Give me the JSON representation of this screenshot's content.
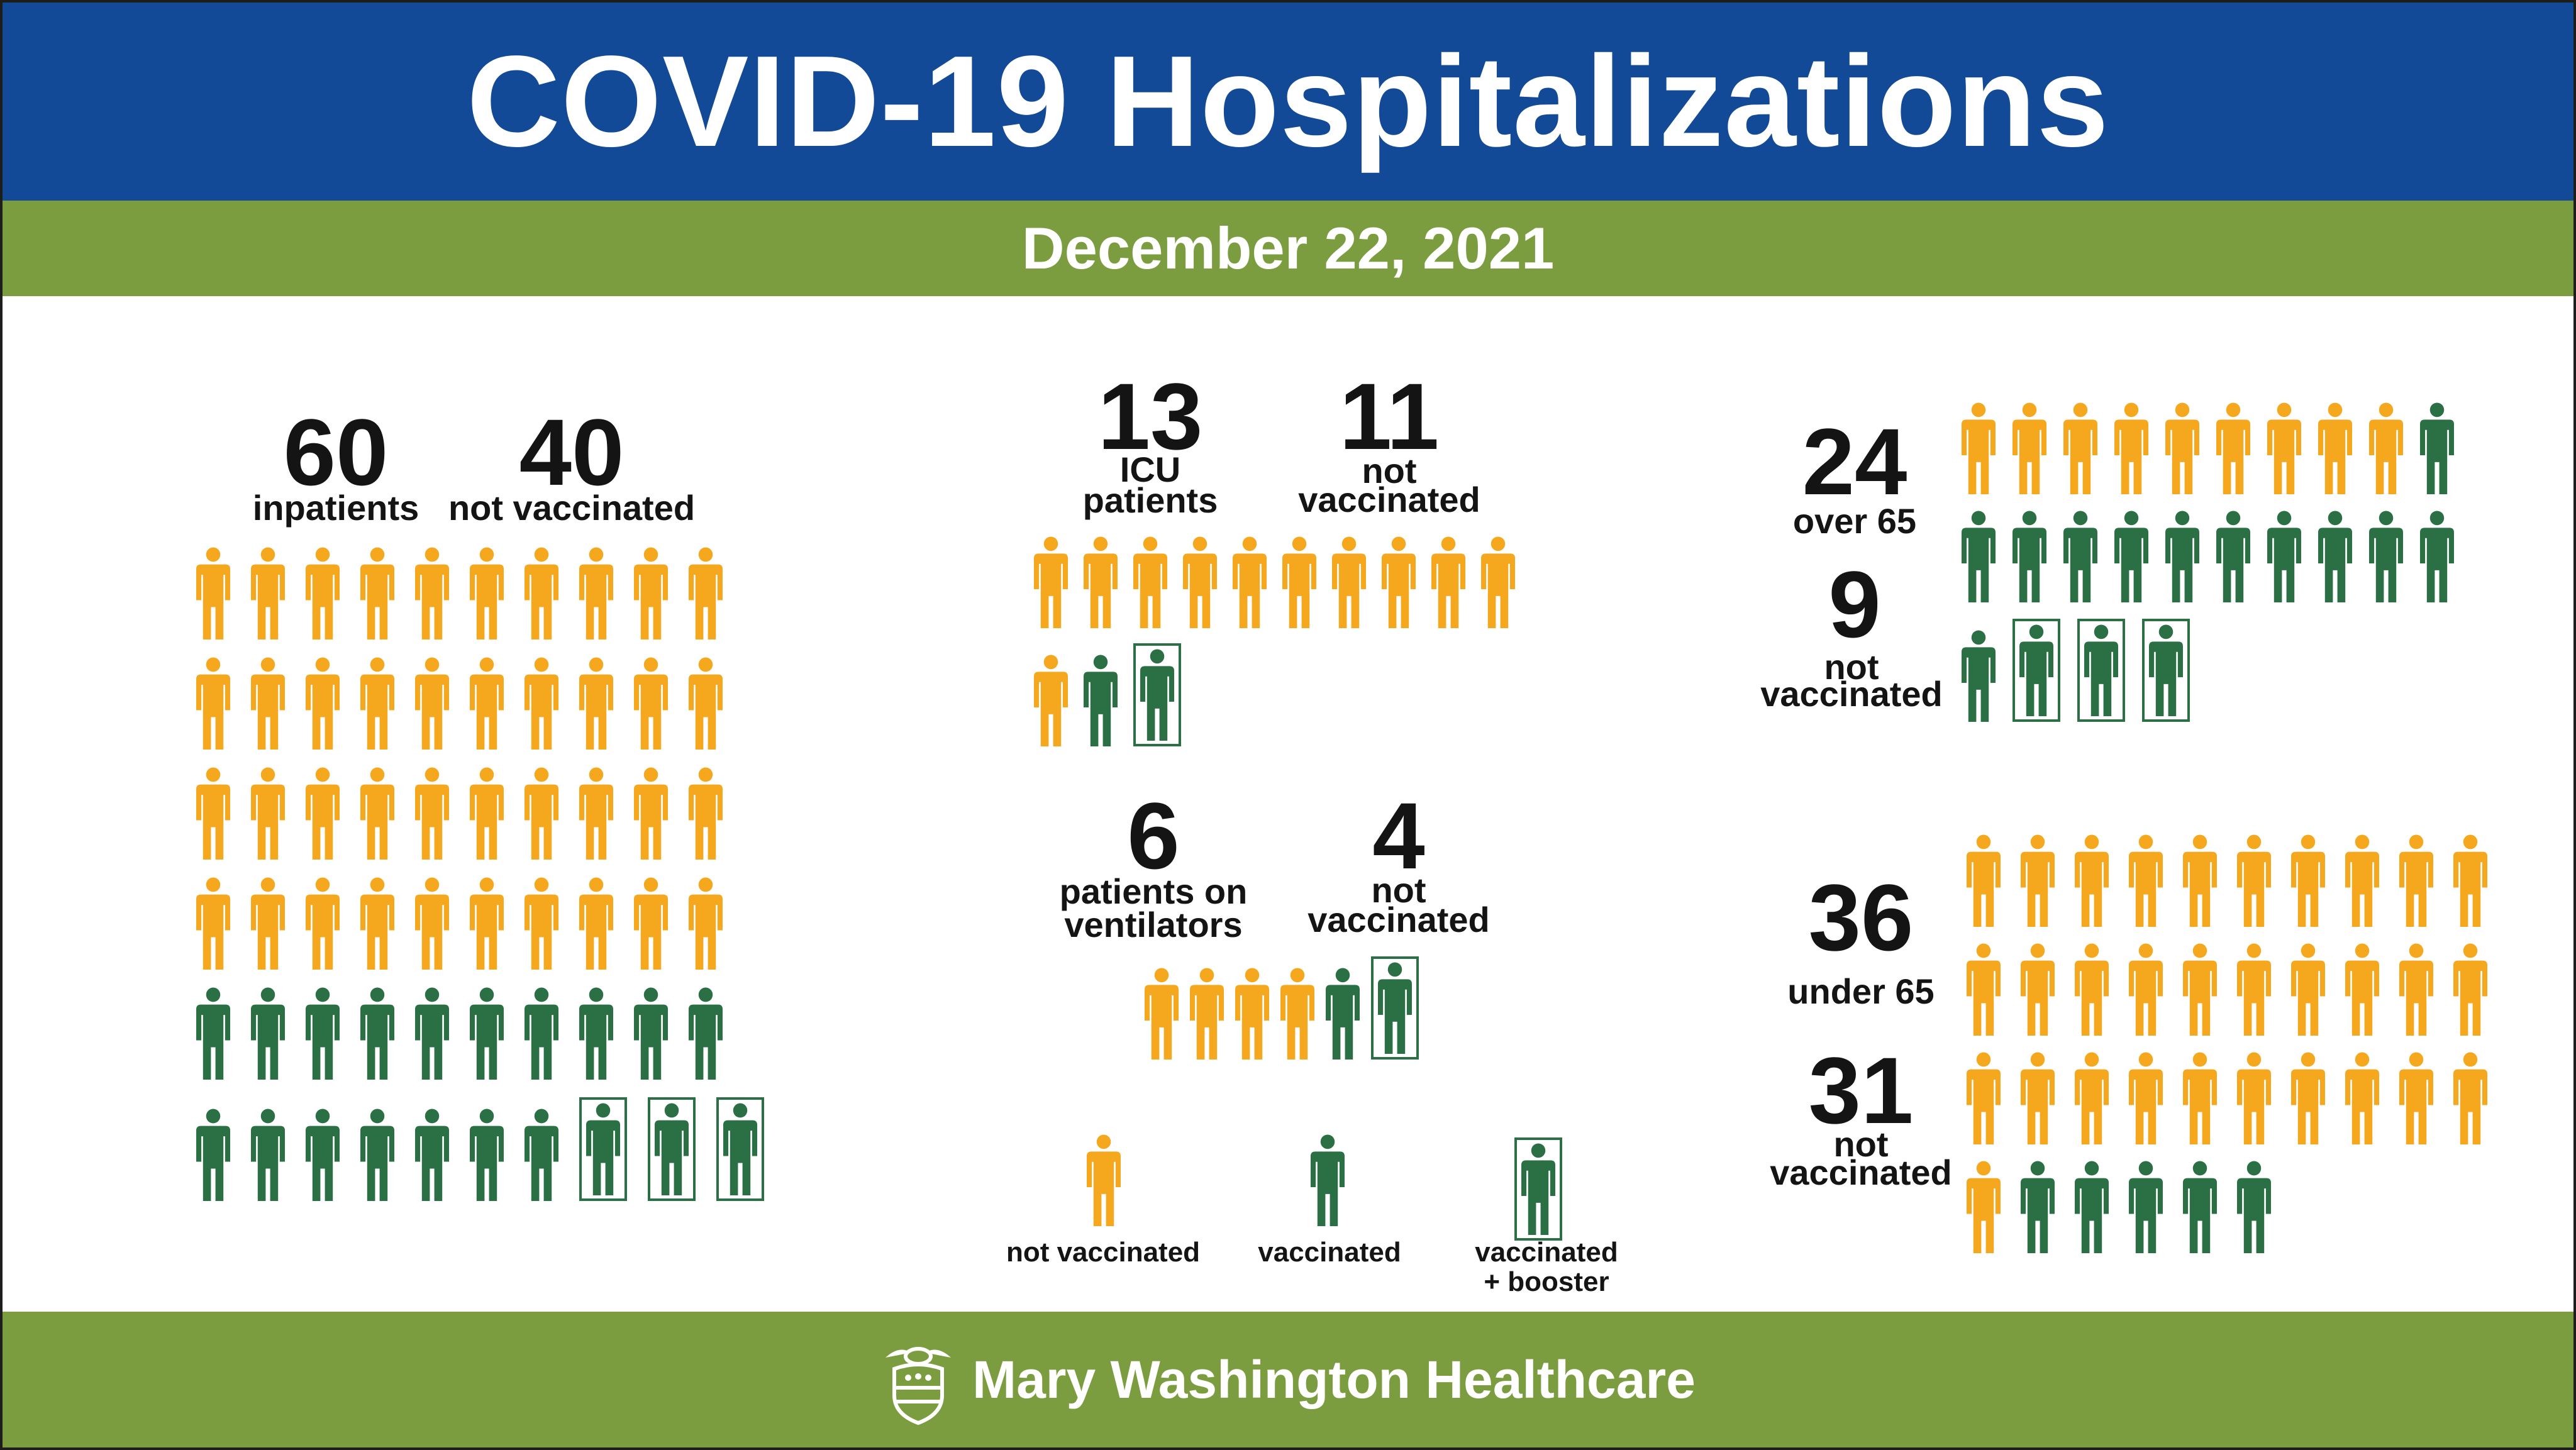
{
  "title": "COVID-19 Hospitalizations",
  "date": "December 22, 2021",
  "colors": {
    "title_band": "#134a97",
    "green_band": "#7b9d3f",
    "not_vaccinated": "#f5a81e",
    "vaccinated": "#2b6f45",
    "text": "#141414"
  },
  "inpatients": {
    "total": "60",
    "total_label": "inpatients",
    "not_vaccinated": "40",
    "not_vaccinated_label": "not vaccinated",
    "rows": [
      [
        "n",
        "n",
        "n",
        "n",
        "n",
        "n",
        "n",
        "n",
        "n",
        "n"
      ],
      [
        "n",
        "n",
        "n",
        "n",
        "n",
        "n",
        "n",
        "n",
        "n",
        "n"
      ],
      [
        "n",
        "n",
        "n",
        "n",
        "n",
        "n",
        "n",
        "n",
        "n",
        "n"
      ],
      [
        "n",
        "n",
        "n",
        "n",
        "n",
        "n",
        "n",
        "n",
        "n",
        "n"
      ],
      [
        "v",
        "v",
        "v",
        "v",
        "v",
        "v",
        "v",
        "v",
        "v",
        "v"
      ],
      [
        "v",
        "v",
        "v",
        "v",
        "v",
        "v",
        "v",
        "b",
        "b",
        "b"
      ]
    ]
  },
  "icu": {
    "total": "13",
    "total_label": [
      "ICU",
      "patients"
    ],
    "not_vaccinated": "11",
    "not_vaccinated_label": [
      "not",
      "vaccinated"
    ],
    "rows": [
      [
        "n",
        "n",
        "n",
        "n",
        "n",
        "n",
        "n",
        "n",
        "n",
        "n"
      ],
      [
        "n",
        "v",
        "b"
      ]
    ]
  },
  "ventilators": {
    "total": "6",
    "total_label": [
      "patients on",
      "ventilators"
    ],
    "not_vaccinated": "4",
    "not_vaccinated_label": [
      "not",
      "vaccinated"
    ],
    "rows": [
      [
        "n",
        "n",
        "n",
        "n",
        "v",
        "b"
      ]
    ]
  },
  "over_65": {
    "total": "24",
    "total_label": "over 65",
    "not_vaccinated": "9",
    "not_vaccinated_label": [
      "not",
      "vaccinated"
    ],
    "rows": [
      [
        "n",
        "n",
        "n",
        "n",
        "n",
        "n",
        "n",
        "n",
        "n",
        "v"
      ],
      [
        "v",
        "v",
        "v",
        "v",
        "v",
        "v",
        "v",
        "v",
        "v",
        "v"
      ],
      [
        "v",
        "b",
        "b",
        "b"
      ]
    ]
  },
  "under_65": {
    "total": "36",
    "total_label": "under 65",
    "not_vaccinated": "31",
    "not_vaccinated_label": [
      "not",
      "vaccinated"
    ],
    "rows": [
      [
        "n",
        "n",
        "n",
        "n",
        "n",
        "n",
        "n",
        "n",
        "n",
        "n"
      ],
      [
        "n",
        "n",
        "n",
        "n",
        "n",
        "n",
        "n",
        "n",
        "n",
        "n"
      ],
      [
        "n",
        "n",
        "n",
        "n",
        "n",
        "n",
        "n",
        "n",
        "n",
        "n"
      ],
      [
        "n",
        "v",
        "v",
        "v",
        "v",
        "v"
      ]
    ]
  },
  "legend": [
    {
      "key": "n",
      "label": [
        "not vaccinated"
      ]
    },
    {
      "key": "v",
      "label": [
        "vaccinated"
      ]
    },
    {
      "key": "b",
      "label": [
        "vaccinated",
        "+ booster"
      ]
    }
  ],
  "footer": {
    "organization": "Mary Washington Healthcare",
    "logo_icon": "crest-logo-icon"
  }
}
